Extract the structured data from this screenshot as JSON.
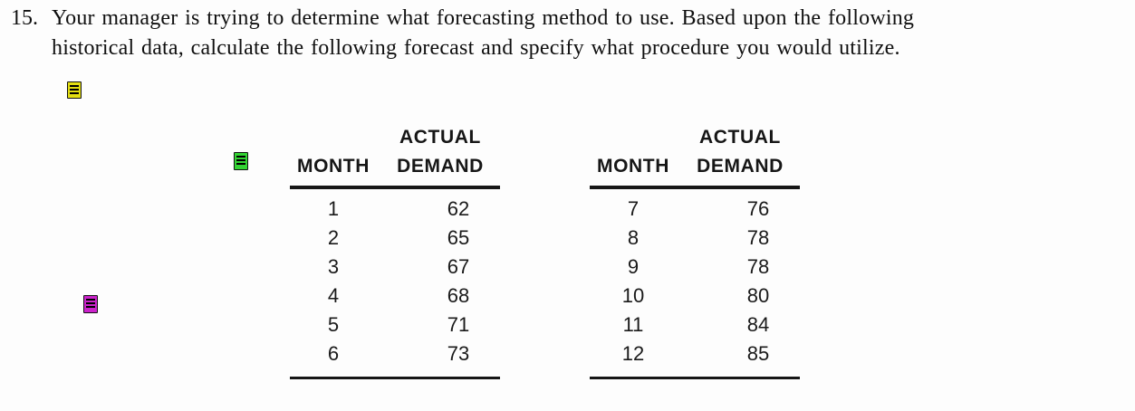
{
  "question": {
    "number": "15.",
    "line1": "Your manager is trying to determine what forecasting method to use. Based upon the following",
    "line2": "historical data, calculate the following forecast and specify what procedure you would utilize."
  },
  "annotations": [
    {
      "name": "yellow-note",
      "color": "#e3de12"
    },
    {
      "name": "green-note",
      "color": "#33d433"
    },
    {
      "name": "magenta-note",
      "color": "#cc22cc"
    }
  ],
  "tables": [
    {
      "col1_header": "MONTH",
      "col2_header_line1": "ACTUAL",
      "col2_header_line2": "DEMAND",
      "rows": [
        {
          "month": "1",
          "demand": "62"
        },
        {
          "month": "2",
          "demand": "65"
        },
        {
          "month": "3",
          "demand": "67"
        },
        {
          "month": "4",
          "demand": "68"
        },
        {
          "month": "5",
          "demand": "71"
        },
        {
          "month": "6",
          "demand": "73"
        }
      ]
    },
    {
      "col1_header": "MONTH",
      "col2_header_line1": "ACTUAL",
      "col2_header_line2": "DEMAND",
      "rows": [
        {
          "month": "7",
          "demand": "76"
        },
        {
          "month": "8",
          "demand": "78"
        },
        {
          "month": "9",
          "demand": "78"
        },
        {
          "month": "10",
          "demand": "80"
        },
        {
          "month": "11",
          "demand": "84"
        },
        {
          "month": "12",
          "demand": "85"
        }
      ]
    }
  ],
  "colors": {
    "text": "#141414",
    "rule": "#161616",
    "background": "#fdfdfd"
  }
}
